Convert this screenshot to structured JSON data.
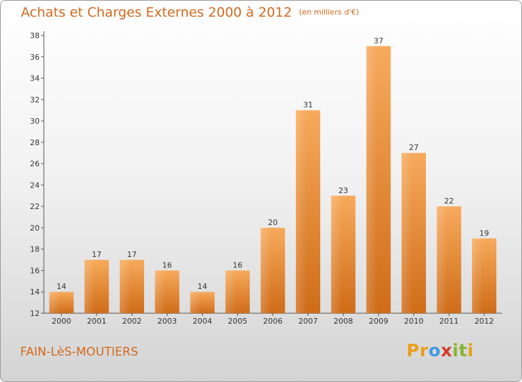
{
  "header": {
    "title": "Achats et Charges Externes 2000 à 2012",
    "unit": "(en milliers d'€)"
  },
  "footer": {
    "commune": "FAIN-LèS-MOUTIERS",
    "logo_letters": [
      "P",
      "r",
      "o",
      "x",
      "i",
      "t",
      "i"
    ]
  },
  "colors": {
    "title": "#d2691e",
    "bar_light": "#f6a85a",
    "bar_dark": "#cf6c18",
    "logo": [
      "#e8a018",
      "#3f9be0",
      "#86b52f",
      "#d6392b"
    ]
  },
  "chart_data": {
    "type": "bar",
    "categories": [
      "2000",
      "2001",
      "2002",
      "2003",
      "2004",
      "2005",
      "2006",
      "2007",
      "2008",
      "2009",
      "2010",
      "2011",
      "2012"
    ],
    "values": [
      14,
      17,
      17,
      16,
      14,
      16,
      20,
      31,
      23,
      37,
      27,
      22,
      19
    ],
    "data_labels": [
      "14",
      "17",
      "17",
      "16",
      "14",
      "16",
      "20",
      "31",
      "23",
      "37",
      "27",
      "22",
      "19"
    ],
    "title": "Achats et Charges Externes 2000 à 2012",
    "subtitle": "(en milliers d'€)",
    "xlabel": "",
    "ylabel": "",
    "ylim": [
      12,
      38
    ],
    "yticks": [
      12,
      14,
      16,
      18,
      20,
      22,
      24,
      26,
      28,
      30,
      32,
      34,
      36,
      38
    ],
    "grid": false,
    "legend": "none"
  }
}
